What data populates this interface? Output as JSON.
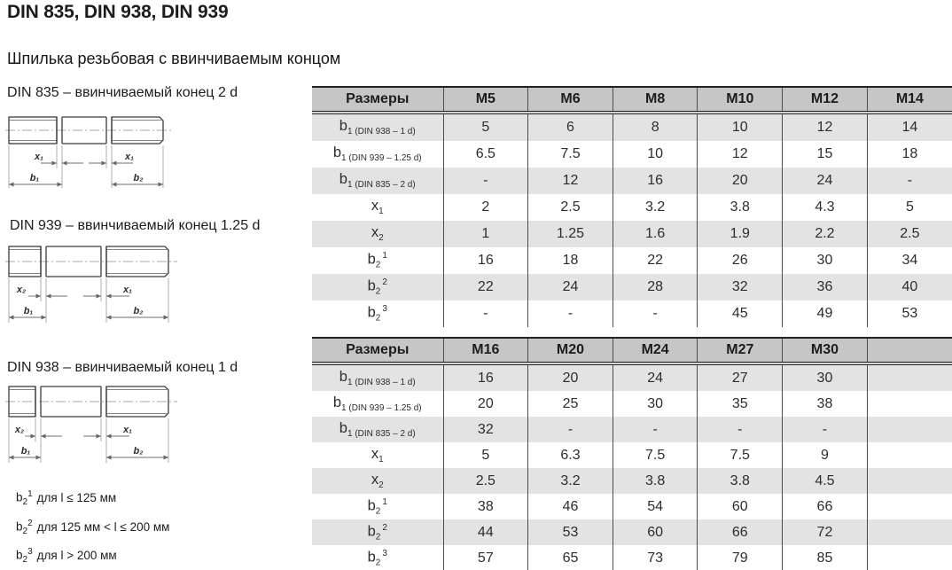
{
  "page": {
    "title": "DIN 835, DIN 938, DIN 939",
    "subtitle": "Шпилька резьбовая с ввинчиваемым концом"
  },
  "drawings": [
    {
      "caption": "DIN 835 – ввинчиваемый конец 2 d",
      "labels": {
        "left": "x₁",
        "right": "x₁",
        "bl": "b₁",
        "br": "b₂"
      }
    },
    {
      "caption": "DIN 939 – ввинчиваемый конец 1.25 d",
      "labels": {
        "left": "x₂",
        "right": "x₁",
        "bl": "b₁",
        "br": "b₂"
      }
    },
    {
      "caption": "DIN 938 – ввинчиваемый конец 1 d",
      "labels": {
        "left": "x₂",
        "right": "x₁",
        "bl": "b₁",
        "br": "b₂"
      }
    }
  ],
  "footnotes": [
    {
      "base": "b",
      "sub": "2",
      "sup": "1",
      "text": "для l ≤ 125 мм"
    },
    {
      "base": "b",
      "sub": "2",
      "sup": "2",
      "text": "для 125 мм < l ≤ 200 мм"
    },
    {
      "base": "b",
      "sub": "2",
      "sup": "3",
      "text": "для l > 200 мм"
    }
  ],
  "tables": [
    {
      "header": [
        "Размеры",
        "M5",
        "M6",
        "M8",
        "M10",
        "M12",
        "M14"
      ],
      "rows": [
        {
          "label": {
            "base": "b",
            "sub": "1 (DIN 938 – 1 d)",
            "sup": ""
          },
          "values": [
            "5",
            "6",
            "8",
            "10",
            "12",
            "14"
          ]
        },
        {
          "label": {
            "base": "b",
            "sub": "1 (DIN 939 – 1.25 d)",
            "sup": ""
          },
          "values": [
            "6.5",
            "7.5",
            "10",
            "12",
            "15",
            "18"
          ]
        },
        {
          "label": {
            "base": "b",
            "sub": "1 (DIN 835 – 2 d)",
            "sup": ""
          },
          "values": [
            "-",
            "12",
            "16",
            "20",
            "24",
            "-"
          ]
        },
        {
          "label": {
            "base": "x",
            "sub": "1",
            "sup": ""
          },
          "values": [
            "2",
            "2.5",
            "3.2",
            "3.8",
            "4.3",
            "5"
          ]
        },
        {
          "label": {
            "base": "x",
            "sub": "2",
            "sup": ""
          },
          "values": [
            "1",
            "1.25",
            "1.6",
            "1.9",
            "2.2",
            "2.5"
          ]
        },
        {
          "label": {
            "base": "b",
            "sub": "2",
            "sup": "1"
          },
          "values": [
            "16",
            "18",
            "22",
            "26",
            "30",
            "34"
          ]
        },
        {
          "label": {
            "base": "b",
            "sub": "2",
            "sup": "2"
          },
          "values": [
            "22",
            "24",
            "28",
            "32",
            "36",
            "40"
          ]
        },
        {
          "label": {
            "base": "b",
            "sub": "2",
            "sup": "3"
          },
          "values": [
            "-",
            "-",
            "-",
            "45",
            "49",
            "53"
          ]
        }
      ]
    },
    {
      "header": [
        "Размеры",
        "M16",
        "M20",
        "M24",
        "M27",
        "M30",
        ""
      ],
      "rows": [
        {
          "label": {
            "base": "b",
            "sub": "1 (DIN 938 – 1 d)",
            "sup": ""
          },
          "values": [
            "16",
            "20",
            "24",
            "27",
            "30",
            ""
          ]
        },
        {
          "label": {
            "base": "b",
            "sub": "1 (DIN 939 – 1.25 d)",
            "sup": ""
          },
          "values": [
            "20",
            "25",
            "30",
            "35",
            "38",
            ""
          ]
        },
        {
          "label": {
            "base": "b",
            "sub": "1 (DIN 835 – 2 d)",
            "sup": ""
          },
          "values": [
            "32",
            "-",
            "-",
            "-",
            "-",
            ""
          ]
        },
        {
          "label": {
            "base": "x",
            "sub": "1",
            "sup": ""
          },
          "values": [
            "5",
            "6.3",
            "7.5",
            "7.5",
            "9",
            ""
          ]
        },
        {
          "label": {
            "base": "x",
            "sub": "2",
            "sup": ""
          },
          "values": [
            "2.5",
            "3.2",
            "3.8",
            "3.8",
            "4.5",
            ""
          ]
        },
        {
          "label": {
            "base": "b",
            "sub": "2",
            "sup": "1"
          },
          "values": [
            "38",
            "46",
            "54",
            "60",
            "66",
            ""
          ]
        },
        {
          "label": {
            "base": "b",
            "sub": "2",
            "sup": "2"
          },
          "values": [
            "44",
            "53",
            "60",
            "66",
            "72",
            ""
          ]
        },
        {
          "label": {
            "base": "b",
            "sub": "2",
            "sup": "3"
          },
          "values": [
            "57",
            "65",
            "73",
            "79",
            "85",
            ""
          ]
        }
      ]
    }
  ],
  "colors": {
    "header_bg": "#c6c6c6",
    "row_alt_bg": "#e3e3e3",
    "border_dark": "#222222",
    "grid_line": "#4c4c4c",
    "text_dark": "#222222"
  }
}
